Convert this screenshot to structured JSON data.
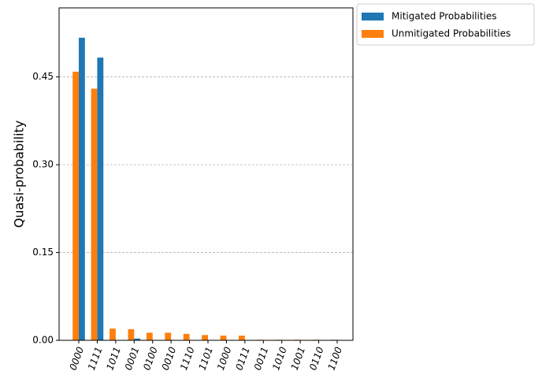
{
  "chart_data": {
    "type": "bar",
    "ylabel": "Quasi-probability",
    "categories": [
      "0000",
      "1111",
      "1011",
      "0001",
      "0100",
      "0010",
      "1110",
      "1101",
      "1000",
      "0111",
      "0011",
      "1010",
      "1001",
      "0110",
      "1100"
    ],
    "series": [
      {
        "name": "Mitigated Probabilities",
        "color": "#1f77b4",
        "values": [
          0.517,
          0.483,
          0,
          0.003,
          0,
          0,
          0,
          0,
          0,
          0,
          0,
          0,
          0,
          0,
          0
        ]
      },
      {
        "name": "Unmitigated Probabilities",
        "color": "#ff7f0e",
        "values": [
          0.459,
          0.43,
          0.02,
          0.019,
          0.013,
          0.013,
          0.011,
          0.009,
          0.008,
          0.008,
          0.001,
          0.001,
          0.001,
          0.001,
          0.001
        ]
      }
    ],
    "ylim": [
      0,
      0.568
    ],
    "yticks": [
      {
        "value": 0,
        "label": "0.00"
      },
      {
        "value": 0.15,
        "label": "0.15"
      },
      {
        "value": 0.3,
        "label": "0.30"
      },
      {
        "value": 0.45,
        "label": "0.45"
      }
    ],
    "grid": true,
    "legend": "outside-upper-right"
  }
}
